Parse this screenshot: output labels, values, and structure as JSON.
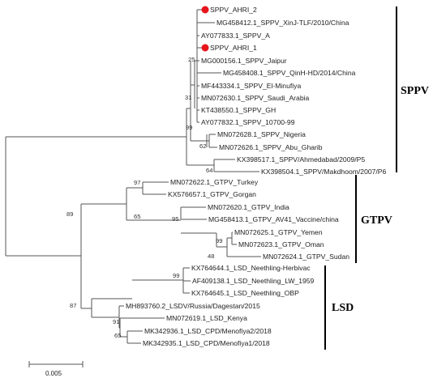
{
  "tree": {
    "taxa": [
      {
        "label": "SPPV_AHRI_2",
        "highlight": true
      },
      {
        "label": "MG458412.1_SPPV_XinJ-TLF/2010/China"
      },
      {
        "label": "AY077833.1_SPPV_A"
      },
      {
        "label": "SPPV_AHRI_1",
        "highlight": true
      },
      {
        "label": "MG000156.1_SPPV_Jaipur"
      },
      {
        "label": "MG458408.1_SPPV_QinH-HD/2014/China"
      },
      {
        "label": "MF443334.1_SPPV_El-Minufiya"
      },
      {
        "label": "MN072630.1_SPPV_Saudi_Arabia"
      },
      {
        "label": "KT438550.1_SPPV_GH"
      },
      {
        "label": "AY077832.1_SPPV_10700-99"
      },
      {
        "label": "MN072628.1_SPPV_Nigeria"
      },
      {
        "label": "MN072626.1_SPPV_Abu_Gharib"
      },
      {
        "label": "KX398517.1_SPPV/Ahmedabad/2009/P5"
      },
      {
        "label": "KX398504.1_SPPV/Makdhoom/2007/P6"
      },
      {
        "label": "MN072622.1_GTPV_Turkey"
      },
      {
        "label": "KX576657.1_GTPV_Gorgan"
      },
      {
        "label": "MN072620.1_GTPV_India"
      },
      {
        "label": "MG458413.1_GTPV_AV41_Vaccine/china"
      },
      {
        "label": "MN072625.1_GTPV_Yemen"
      },
      {
        "label": "MN072623.1_GTPV_Oman"
      },
      {
        "label": "MN072624.1_GTPV_Sudan"
      },
      {
        "label": "KX764644.1_LSD_Neethling-Herbivac"
      },
      {
        "label": "AF409138.1_LSD_Neethling_LW_1959"
      },
      {
        "label": "KX764645.1_LSD_Neethling_OBP"
      },
      {
        "label": "MH893760.2_LSDV/Russia/Dagestan/2015"
      },
      {
        "label": "MN072619.1_LSD_Kenya"
      },
      {
        "label": "MK342936.1_LSD_CPD/Menofiya2/2018"
      },
      {
        "label": "MK342935.1_LSD_CPD/Menofiya1/2018"
      }
    ],
    "support_values": [
      "25",
      "31",
      "99",
      "62",
      "64",
      "97",
      "65",
      "89",
      "95",
      "99",
      "48",
      "99",
      "87",
      "91",
      "65"
    ],
    "clades": [
      "SPPV",
      "GTPV",
      "LSD"
    ],
    "scale": {
      "label": "0.005"
    },
    "highlight_color": "#e8141c"
  }
}
